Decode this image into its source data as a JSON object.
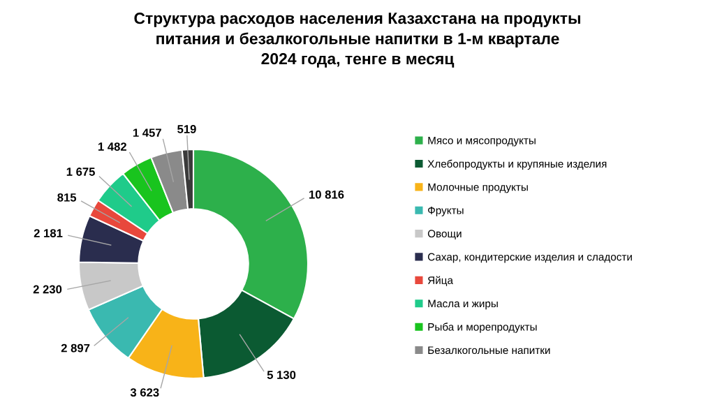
{
  "chart_data": {
    "type": "donut",
    "title": "Структура расходов населения Казахстана на продукты\nпитания и безалкогольные напитки в 1-м квартале\n2024 года, тенге в месяц",
    "categories": [
      "Мясо и мясопродукты",
      "Хлебопродукты и крупяные изделия",
      "Молочные продукты",
      "Фрукты",
      "Овощи",
      "Сахар, кондитерские изделия и сладости",
      "Яйца",
      "Масла и жиры",
      "Рыба и морепродукты",
      "Безалкогольные напитки",
      null
    ],
    "values": [
      10816,
      5130,
      3623,
      2897,
      2230,
      2181,
      815,
      1675,
      1482,
      1457,
      519
    ],
    "value_labels": [
      "10 816",
      "5 130",
      "3 623",
      "2 897",
      "2 230",
      "2 181",
      "815",
      "1 675",
      "1 482",
      "1 457",
      "519"
    ],
    "colors": [
      "#2db04b",
      "#0b5a32",
      "#f8b318",
      "#3ab9b0",
      "#c8c8c8",
      "#2a2d4e",
      "#e8483c",
      "#1fcb8a",
      "#19c41e",
      "#8a8a8a",
      "#3a3a3a"
    ],
    "legend": "right"
  }
}
